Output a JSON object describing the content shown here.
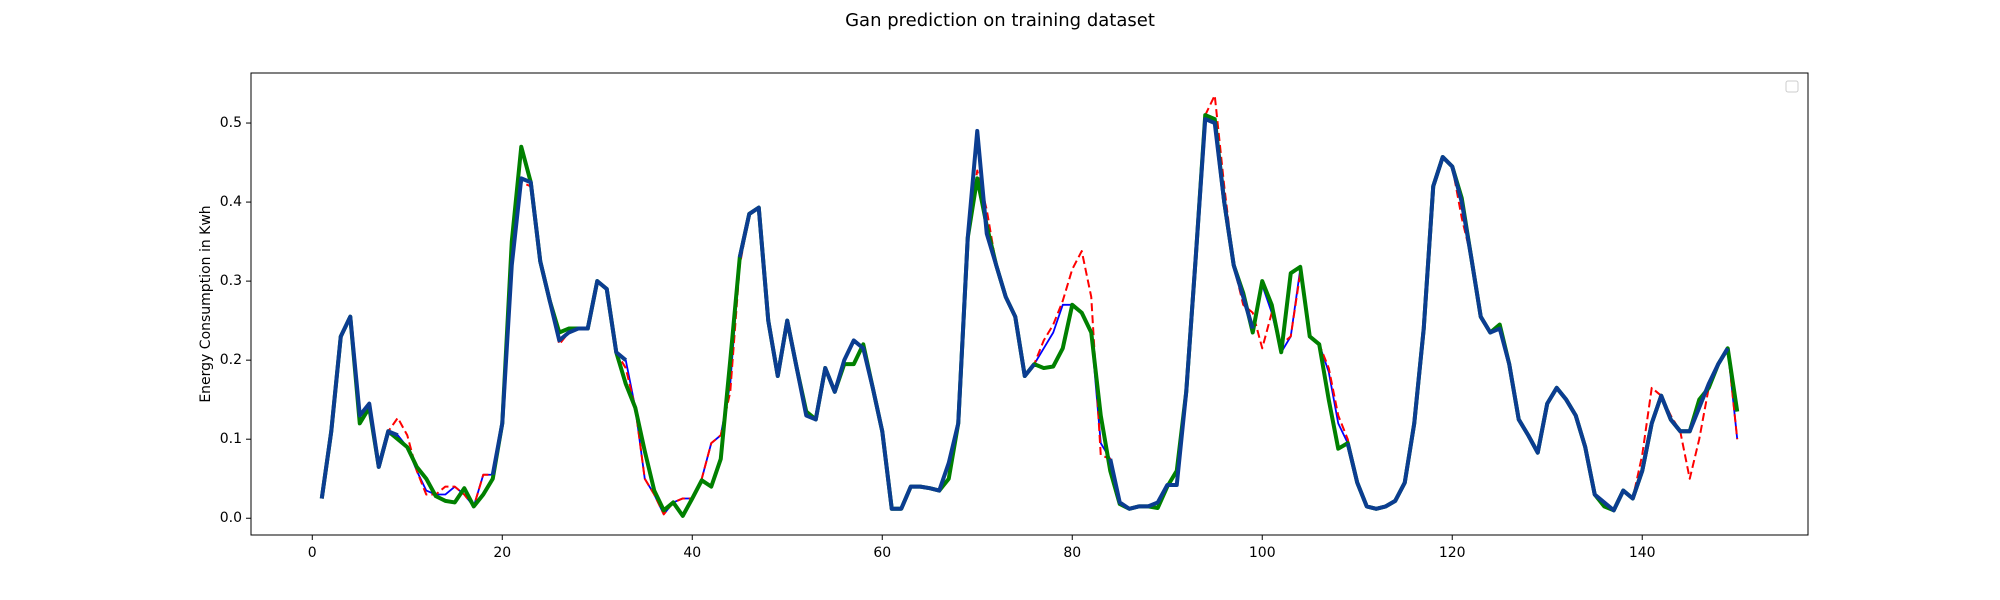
{
  "chart_data": {
    "type": "line",
    "title": "Gan prediction on training dataset",
    "ylabel": "Energy Consumption in Kwh",
    "x": [
      1,
      2,
      3,
      4,
      5,
      6,
      7,
      8,
      9,
      10,
      11,
      12,
      13,
      14,
      15,
      16,
      17,
      18,
      19,
      20,
      21,
      22,
      23,
      24,
      25,
      26,
      27,
      28,
      29,
      30,
      31,
      32,
      33,
      34,
      35,
      36,
      37,
      38,
      39,
      40,
      41,
      42,
      43,
      44,
      45,
      46,
      47,
      48,
      49,
      50,
      51,
      52,
      53,
      54,
      55,
      56,
      57,
      58,
      59,
      60,
      61,
      62,
      63,
      64,
      65,
      66,
      67,
      68,
      69,
      70,
      71,
      72,
      73,
      74,
      75,
      76,
      77,
      78,
      79,
      80,
      81,
      82,
      83,
      84,
      85,
      86,
      87,
      88,
      89,
      90,
      91,
      92,
      93,
      94,
      95,
      96,
      97,
      98,
      99,
      100,
      101,
      102,
      103,
      104,
      105,
      106,
      107,
      108,
      109,
      110,
      111,
      112,
      113,
      114,
      115,
      116,
      117,
      118,
      119,
      120,
      121,
      122,
      123,
      124,
      125,
      126,
      127,
      128,
      129,
      130,
      131,
      132,
      133,
      134,
      135,
      136,
      137,
      138,
      139,
      140,
      141,
      142,
      143,
      144,
      145,
      146,
      147,
      148,
      149,
      150
    ],
    "series": [
      {
        "color": "#0000ff",
        "linewidth": 1.8,
        "dashed": false,
        "values": [
          0.025,
          0.11,
          0.23,
          0.255,
          0.13,
          0.145,
          0.065,
          0.11,
          0.105,
          0.09,
          0.06,
          0.035,
          0.03,
          0.03,
          0.04,
          0.03,
          0.015,
          0.055,
          0.055,
          0.12,
          0.32,
          0.43,
          0.425,
          0.325,
          0.275,
          0.225,
          0.235,
          0.24,
          0.24,
          0.3,
          0.29,
          0.21,
          0.2,
          0.14,
          0.05,
          0.03,
          0.005,
          0.02,
          0.025,
          0.025,
          0.05,
          0.095,
          0.105,
          0.17,
          0.33,
          0.385,
          0.393,
          0.25,
          0.18,
          0.25,
          0.19,
          0.13,
          0.125,
          0.19,
          0.16,
          0.2,
          0.225,
          0.215,
          0.165,
          0.11,
          0.012,
          0.012,
          0.04,
          0.04,
          0.038,
          0.035,
          0.07,
          0.12,
          0.355,
          0.49,
          0.36,
          0.32,
          0.28,
          0.255,
          0.18,
          0.195,
          0.215,
          0.235,
          0.27,
          0.27,
          0.26,
          0.235,
          0.095,
          0.075,
          0.02,
          0.012,
          0.015,
          0.015,
          0.02,
          0.042,
          0.042,
          0.16,
          0.33,
          0.505,
          0.5,
          0.4,
          0.32,
          0.28,
          0.24,
          0.295,
          0.26,
          0.21,
          0.23,
          0.315,
          0.23,
          0.22,
          0.185,
          0.12,
          0.095,
          0.045,
          0.015,
          0.012,
          0.015,
          0.022,
          0.045,
          0.12,
          0.24,
          0.42,
          0.457,
          0.445,
          0.4,
          0.33,
          0.255,
          0.235,
          0.24,
          0.195,
          0.125,
          0.105,
          0.083,
          0.145,
          0.165,
          0.15,
          0.13,
          0.09,
          0.03,
          0.02,
          0.01,
          0.035,
          0.025,
          0.06,
          0.12,
          0.155,
          0.125,
          0.11,
          0.11,
          0.14,
          0.17,
          0.195,
          0.215,
          0.1
        ]
      },
      {
        "color": "#ff0000",
        "linewidth": 2,
        "dashed": true,
        "values": [
          0.025,
          0.11,
          0.23,
          0.255,
          0.13,
          0.145,
          0.065,
          0.11,
          0.127,
          0.105,
          0.06,
          0.03,
          0.03,
          0.04,
          0.04,
          0.03,
          0.015,
          0.055,
          0.055,
          0.12,
          0.32,
          0.425,
          0.42,
          0.325,
          0.275,
          0.22,
          0.235,
          0.24,
          0.24,
          0.3,
          0.29,
          0.21,
          0.19,
          0.14,
          0.05,
          0.03,
          0.005,
          0.02,
          0.025,
          0.025,
          0.05,
          0.095,
          0.105,
          0.16,
          0.32,
          0.385,
          0.393,
          0.25,
          0.18,
          0.25,
          0.19,
          0.13,
          0.125,
          0.19,
          0.16,
          0.2,
          0.225,
          0.215,
          0.165,
          0.11,
          0.012,
          0.012,
          0.04,
          0.04,
          0.038,
          0.035,
          0.07,
          0.12,
          0.355,
          0.44,
          0.39,
          0.32,
          0.28,
          0.255,
          0.18,
          0.195,
          0.225,
          0.245,
          0.275,
          0.315,
          0.338,
          0.28,
          0.08,
          0.075,
          0.02,
          0.012,
          0.015,
          0.015,
          0.02,
          0.042,
          0.042,
          0.16,
          0.33,
          0.51,
          0.535,
          0.42,
          0.32,
          0.27,
          0.26,
          0.215,
          0.26,
          0.22,
          0.23,
          0.31,
          0.23,
          0.22,
          0.19,
          0.13,
          0.1,
          0.045,
          0.015,
          0.012,
          0.015,
          0.022,
          0.045,
          0.12,
          0.24,
          0.42,
          0.457,
          0.445,
          0.38,
          0.33,
          0.255,
          0.235,
          0.24,
          0.195,
          0.125,
          0.105,
          0.083,
          0.145,
          0.165,
          0.15,
          0.13,
          0.09,
          0.03,
          0.02,
          0.01,
          0.035,
          0.025,
          0.08,
          0.165,
          0.155,
          0.13,
          0.11,
          0.05,
          0.1,
          0.165,
          0.195,
          0.215,
          0.1
        ]
      },
      {
        "color": "#008000",
        "linewidth": 4,
        "dashed": false,
        "values": [
          0.025,
          0.11,
          0.23,
          0.255,
          0.12,
          0.14,
          0.065,
          0.11,
          0.1,
          0.09,
          0.065,
          0.05,
          0.028,
          0.022,
          0.02,
          0.038,
          0.015,
          0.03,
          0.05,
          0.12,
          0.35,
          0.47,
          0.425,
          0.325,
          0.275,
          0.235,
          0.24,
          0.24,
          0.24,
          0.3,
          0.29,
          0.21,
          0.17,
          0.14,
          0.085,
          0.035,
          0.01,
          0.02,
          0.003,
          0.025,
          0.048,
          0.04,
          0.075,
          0.2,
          0.33,
          0.385,
          0.393,
          0.25,
          0.18,
          0.25,
          0.19,
          0.135,
          0.125,
          0.19,
          0.16,
          0.195,
          0.195,
          0.22,
          0.165,
          0.11,
          0.012,
          0.012,
          0.04,
          0.04,
          0.038,
          0.035,
          0.05,
          0.12,
          0.355,
          0.43,
          0.37,
          0.32,
          0.28,
          0.255,
          0.18,
          0.195,
          0.19,
          0.192,
          0.215,
          0.27,
          0.26,
          0.235,
          0.13,
          0.06,
          0.018,
          0.012,
          0.015,
          0.015,
          0.013,
          0.04,
          0.06,
          0.16,
          0.33,
          0.51,
          0.505,
          0.4,
          0.32,
          0.285,
          0.235,
          0.3,
          0.27,
          0.21,
          0.31,
          0.318,
          0.23,
          0.22,
          0.15,
          0.088,
          0.095,
          0.045,
          0.015,
          0.012,
          0.015,
          0.022,
          0.045,
          0.12,
          0.24,
          0.42,
          0.457,
          0.445,
          0.405,
          0.33,
          0.255,
          0.235,
          0.245,
          0.195,
          0.125,
          0.105,
          0.083,
          0.145,
          0.165,
          0.15,
          0.13,
          0.09,
          0.03,
          0.015,
          0.01,
          0.035,
          0.025,
          0.06,
          0.12,
          0.155,
          0.125,
          0.11,
          0.11,
          0.15,
          0.165,
          0.195,
          0.215,
          0.135
        ]
      },
      {
        "color": "#0b3d91",
        "linewidth": 4,
        "dashed": false,
        "values": [
          0.025,
          0.11,
          0.23,
          0.255,
          0.13,
          0.145,
          0.065,
          0.11,
          0.105,
          null,
          null,
          null,
          null,
          null,
          null,
          null,
          null,
          null,
          0.055,
          0.12,
          0.32,
          0.43,
          0.425,
          0.325,
          0.275,
          0.225,
          0.235,
          0.24,
          0.24,
          0.3,
          0.29,
          0.21,
          0.2,
          null,
          null,
          null,
          null,
          null,
          null,
          null,
          null,
          null,
          null,
          null,
          0.33,
          0.385,
          0.393,
          0.25,
          0.18,
          0.25,
          0.19,
          0.13,
          0.125,
          0.19,
          0.16,
          0.2,
          0.225,
          0.215,
          0.165,
          0.11,
          0.012,
          0.012,
          0.04,
          0.04,
          0.038,
          0.035,
          0.07,
          0.12,
          0.355,
          0.49,
          0.36,
          0.32,
          0.28,
          0.255,
          0.18,
          0.195,
          null,
          null,
          null,
          null,
          null,
          null,
          null,
          0.075,
          0.02,
          0.012,
          0.015,
          0.015,
          0.02,
          0.042,
          0.042,
          0.16,
          0.33,
          0.505,
          0.5,
          0.4,
          0.32,
          0.28,
          0.24,
          null,
          null,
          null,
          null,
          null,
          null,
          null,
          null,
          null,
          0.095,
          0.045,
          0.015,
          0.012,
          0.015,
          0.022,
          0.045,
          0.12,
          0.24,
          0.42,
          0.457,
          0.445,
          0.4,
          0.33,
          0.255,
          0.235,
          0.24,
          0.195,
          0.125,
          0.105,
          0.083,
          0.145,
          0.165,
          0.15,
          0.13,
          0.09,
          0.03,
          0.02,
          0.01,
          0.035,
          0.025,
          0.06,
          0.12,
          0.155,
          0.125,
          0.11,
          0.11,
          0.14,
          0.17,
          0.195,
          0.215,
          null
        ]
      }
    ],
    "xlim": [
      -6.45,
      157.45
    ],
    "xticks": [
      0,
      20,
      40,
      60,
      80,
      100,
      120,
      140
    ],
    "ylim": [
      -0.0212,
      0.5633
    ],
    "yticks": [
      {
        "value": 0,
        "label": "0.0"
      },
      0.1,
      0.2,
      0.3,
      0.4,
      0.5
    ],
    "grid": false,
    "legend": "upper right"
  }
}
